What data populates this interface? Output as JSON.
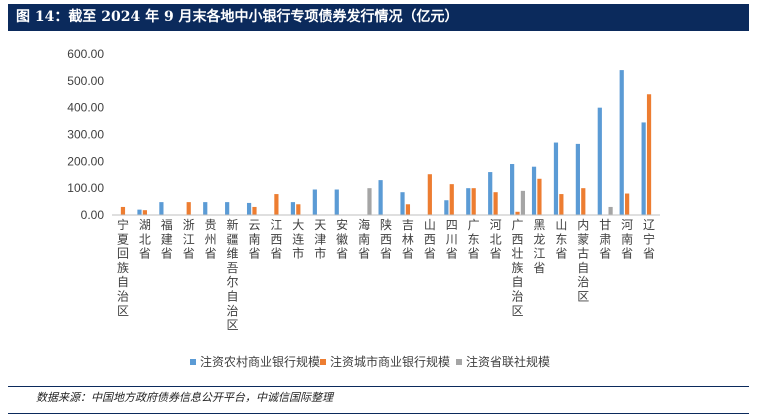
{
  "header": {
    "title": "图 14：截至 2024 年 9 月末各地中小银行专项债券发行情况（亿元）"
  },
  "footer": {
    "source": "数据来源：中国地方政府债券信息公开平台，中诚信国际整理"
  },
  "colors": {
    "rural": "#5b9bd5",
    "city": "#ed7d31",
    "union": "#a5a5a5",
    "frame": "#0b2a5c"
  },
  "chart_data": {
    "type": "bar",
    "title": "",
    "xlabel": "",
    "ylabel": "",
    "ylim": [
      0,
      600
    ],
    "yticks": [
      "600.00",
      "500.00",
      "400.00",
      "300.00",
      "200.00",
      "100.00",
      "0.00"
    ],
    "grid": false,
    "legend_position": "bottom",
    "categories": [
      "宁夏回族自治区",
      "湖北省",
      "福建省",
      "浙江省",
      "贵州省",
      "新疆维吾尔自治区",
      "云南省",
      "江西省",
      "大连市",
      "天津市",
      "安徽省",
      "海南省",
      "陕西省",
      "吉林省",
      "山西省",
      "四川省",
      "广东省",
      "河北省",
      "广西壮族自治区",
      "黑龙江省",
      "山东省",
      "内蒙古自治区",
      "甘肃省",
      "河南省",
      "辽宁省"
    ],
    "series": [
      {
        "name": "注资农村商业银行规模",
        "values": [
          0,
          20,
          48,
          0,
          48,
          48,
          45,
          0,
          48,
          95,
          95,
          0,
          130,
          85,
          0,
          55,
          100,
          160,
          190,
          180,
          270,
          265,
          400,
          540,
          345
        ]
      },
      {
        "name": "注资城市商业银行规模",
        "values": [
          30,
          18,
          0,
          48,
          0,
          0,
          30,
          78,
          40,
          0,
          0,
          0,
          0,
          40,
          152,
          115,
          100,
          85,
          12,
          135,
          78,
          100,
          0,
          80,
          450
        ]
      },
      {
        "name": "注资省联社规模",
        "values": [
          0,
          0,
          0,
          0,
          0,
          0,
          0,
          0,
          0,
          0,
          0,
          100,
          0,
          0,
          0,
          0,
          0,
          0,
          90,
          0,
          0,
          0,
          30,
          0,
          0
        ]
      }
    ]
  }
}
